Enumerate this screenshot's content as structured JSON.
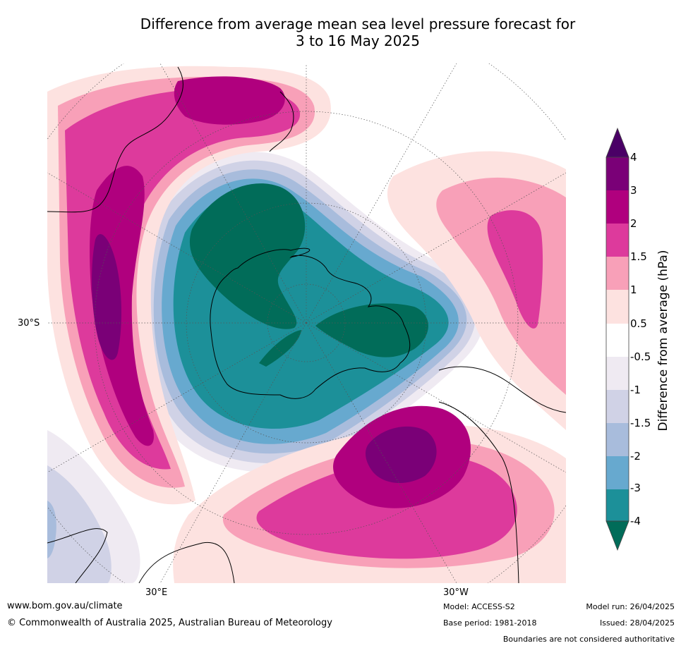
{
  "title": {
    "line1": "Difference from average mean sea level pressure forecast for",
    "line2": "3 to 16 May 2025"
  },
  "map": {
    "projection": "south polar stereographic",
    "lat_label": "30°S",
    "lon_labels": [
      "30°E",
      "30°W"
    ],
    "features": [
      "graticule",
      "coastlines",
      "filled contours of pressure anomaly"
    ]
  },
  "colorbar": {
    "label": "Difference from average (hPa)",
    "ticks": [
      "4",
      "3",
      "2",
      "1.5",
      "1",
      "0.5",
      "-0.5",
      "-1",
      "-1.5",
      "-2",
      "-3",
      "-4"
    ],
    "colors": {
      "above_4": "#4a0066",
      "3_to_4": "#7a0077",
      "2_to_3": "#b0007e",
      "1_5_to_2": "#dd3a9c",
      "1_to_1_5": "#f8a0b8",
      "0_5_to_1": "#fde2e0",
      "neutral": "#ffffff",
      "m1_to_m0_5": "#efeaf2",
      "m1_5_to_m1": "#d0d2e6",
      "m2_to_m1_5": "#a8bcdc",
      "m3_to_m2": "#67a9cf",
      "m4_to_m3": "#1c9099",
      "below_m4": "#016c59"
    }
  },
  "footer": {
    "website": "www.bom.gov.au/climate",
    "copyright": "© Commonwealth of Australia 2025, Australian Bureau of Meteorology",
    "model": "Model: ACCESS-S2",
    "base_period": "Base period: 1981-2018",
    "model_run": "Model run: 26/04/2025",
    "issued": "Issued: 28/04/2025",
    "disclaimer": "Boundaries are not considered authoritative"
  }
}
